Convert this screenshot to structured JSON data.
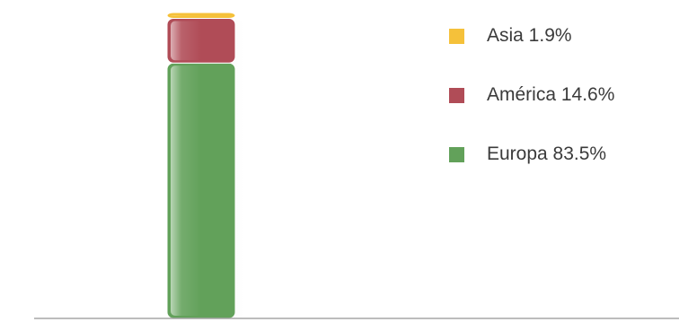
{
  "chart_data": {
    "type": "bar",
    "stacked": true,
    "categories": [
      ""
    ],
    "series": [
      {
        "name": "Europa",
        "values": [
          83.5
        ],
        "label": "Europa 83.5%",
        "color": "#62a15a"
      },
      {
        "name": "América",
        "values": [
          14.6
        ],
        "label": "América 14.6%",
        "color": "#b04c57"
      },
      {
        "name": "Asia",
        "values": [
          1.9
        ],
        "label": "Asia 1.9%",
        "color": "#f5c13a"
      }
    ],
    "ylim": [
      0,
      100
    ],
    "grid": false,
    "legend_position": "right",
    "title": "",
    "xlabel": "",
    "ylabel": ""
  }
}
